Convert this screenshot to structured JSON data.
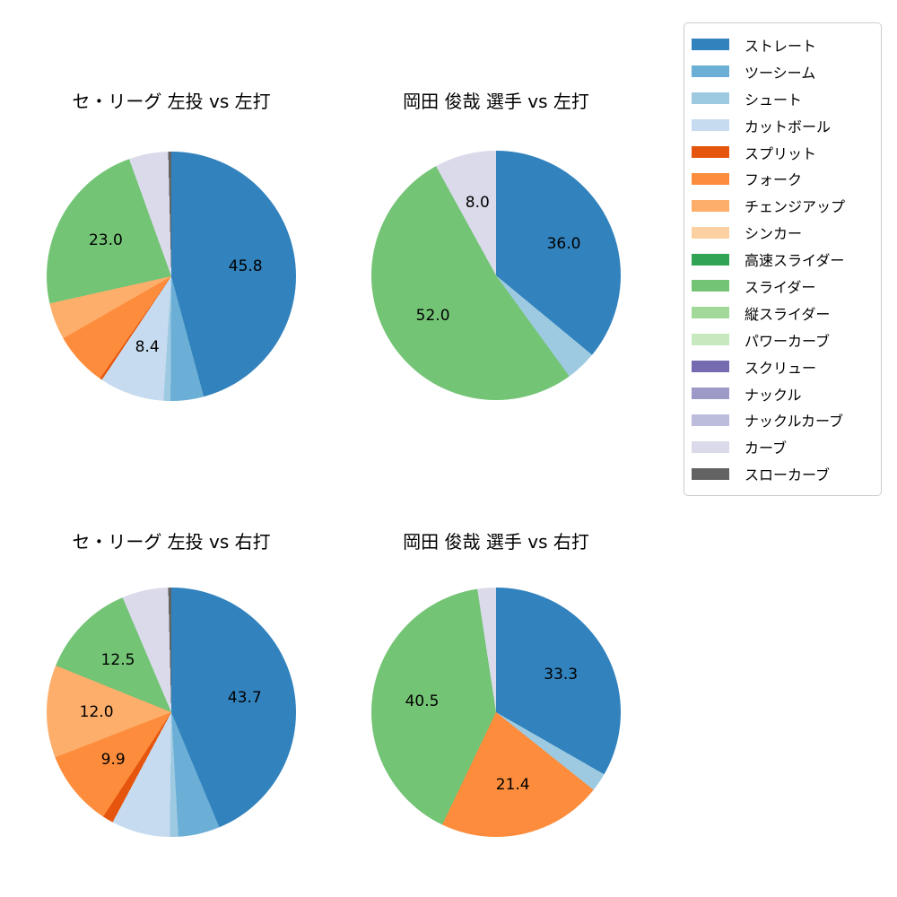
{
  "figure": {
    "background": "#ffffff"
  },
  "palette": {
    "ストレート": "#3182bd",
    "ツーシーム": "#6baed6",
    "シュート": "#9ecae1",
    "カットボール": "#c6dbef",
    "スプリット": "#e6550d",
    "フォーク": "#fd8d3c",
    "チェンジアップ": "#fdae6b",
    "シンカー": "#fdd0a2",
    "高速スライダー": "#31a354",
    "スライダー": "#74c476",
    "縦スライダー": "#a1d99b",
    "パワーカーブ": "#c7e9c0",
    "スクリュー": "#756bb1",
    "ナックル": "#9e9ac8",
    "ナックルカーブ": "#bcbddc",
    "カーブ": "#dadaeb",
    "スローカーブ": "#636363"
  },
  "legend": {
    "position": "upper-right-outside",
    "items": [
      {
        "label": "ストレート",
        "color": "#3182bd"
      },
      {
        "label": "ツーシーム",
        "color": "#6baed6"
      },
      {
        "label": "シュート",
        "color": "#9ecae1"
      },
      {
        "label": "カットボール",
        "color": "#c6dbef"
      },
      {
        "label": "スプリット",
        "color": "#e6550d"
      },
      {
        "label": "フォーク",
        "color": "#fd8d3c"
      },
      {
        "label": "チェンジアップ",
        "color": "#fdae6b"
      },
      {
        "label": "シンカー",
        "color": "#fdd0a2"
      },
      {
        "label": "高速スライダー",
        "color": "#31a354"
      },
      {
        "label": "スライダー",
        "color": "#74c476"
      },
      {
        "label": "縦スライダー",
        "color": "#a1d99b"
      },
      {
        "label": "パワーカーブ",
        "color": "#c7e9c0"
      },
      {
        "label": "スクリュー",
        "color": "#756bb1"
      },
      {
        "label": "ナックル",
        "color": "#9e9ac8"
      },
      {
        "label": "ナックルカーブ",
        "color": "#bcbddc"
      },
      {
        "label": "カーブ",
        "color": "#dadaeb"
      },
      {
        "label": "スローカーブ",
        "color": "#636363"
      }
    ]
  },
  "chart_data": [
    {
      "type": "pie",
      "title": "セ・リーグ 左投 vs 左打",
      "start_angle": "top",
      "direction": "clockwise",
      "label_distance": 0.6,
      "slices": [
        {
          "name": "ストレート",
          "value": 45.8,
          "label": "45.8"
        },
        {
          "name": "ツーシーム",
          "value": 4.3,
          "label": ""
        },
        {
          "name": "シュート",
          "value": 0.9,
          "label": ""
        },
        {
          "name": "カットボール",
          "value": 8.4,
          "label": "8.4"
        },
        {
          "name": "スプリット",
          "value": 0.3,
          "label": ""
        },
        {
          "name": "フォーク",
          "value": 7.0,
          "label": ""
        },
        {
          "name": "チェンジアップ",
          "value": 4.8,
          "label": ""
        },
        {
          "name": "スライダー",
          "value": 23.0,
          "label": "23.0"
        },
        {
          "name": "カーブ",
          "value": 5.1,
          "label": ""
        },
        {
          "name": "スローカーブ",
          "value": 0.4,
          "label": ""
        }
      ]
    },
    {
      "type": "pie",
      "title": "岡田 俊哉 選手 vs 左打",
      "start_angle": "top",
      "direction": "clockwise",
      "label_distance": 0.6,
      "slices": [
        {
          "name": "ストレート",
          "value": 36.0,
          "label": "36.0"
        },
        {
          "name": "シュート",
          "value": 4.0,
          "label": ""
        },
        {
          "name": "スライダー",
          "value": 52.0,
          "label": "52.0"
        },
        {
          "name": "カーブ",
          "value": 8.0,
          "label": "8.0"
        }
      ]
    },
    {
      "type": "pie",
      "title": "セ・リーグ 左投 vs 右打",
      "start_angle": "top",
      "direction": "clockwise",
      "label_distance": 0.6,
      "slices": [
        {
          "name": "ストレート",
          "value": 43.7,
          "label": "43.7"
        },
        {
          "name": "ツーシーム",
          "value": 5.4,
          "label": ""
        },
        {
          "name": "シュート",
          "value": 1.1,
          "label": ""
        },
        {
          "name": "カットボール",
          "value": 7.6,
          "label": ""
        },
        {
          "name": "スプリット",
          "value": 1.4,
          "label": ""
        },
        {
          "name": "フォーク",
          "value": 9.9,
          "label": "9.9"
        },
        {
          "name": "チェンジアップ",
          "value": 12.0,
          "label": "12.0"
        },
        {
          "name": "スライダー",
          "value": 12.5,
          "label": "12.5"
        },
        {
          "name": "カーブ",
          "value": 6.0,
          "label": ""
        },
        {
          "name": "スローカーブ",
          "value": 0.4,
          "label": ""
        }
      ]
    },
    {
      "type": "pie",
      "title": "岡田 俊哉 選手 vs 右打",
      "start_angle": "top",
      "direction": "clockwise",
      "label_distance": 0.6,
      "slices": [
        {
          "name": "ストレート",
          "value": 33.3,
          "label": "33.3"
        },
        {
          "name": "シュート",
          "value": 2.4,
          "label": ""
        },
        {
          "name": "フォーク",
          "value": 21.4,
          "label": "21.4"
        },
        {
          "name": "スライダー",
          "value": 40.5,
          "label": "40.5"
        },
        {
          "name": "カーブ",
          "value": 2.4,
          "label": ""
        }
      ]
    }
  ]
}
